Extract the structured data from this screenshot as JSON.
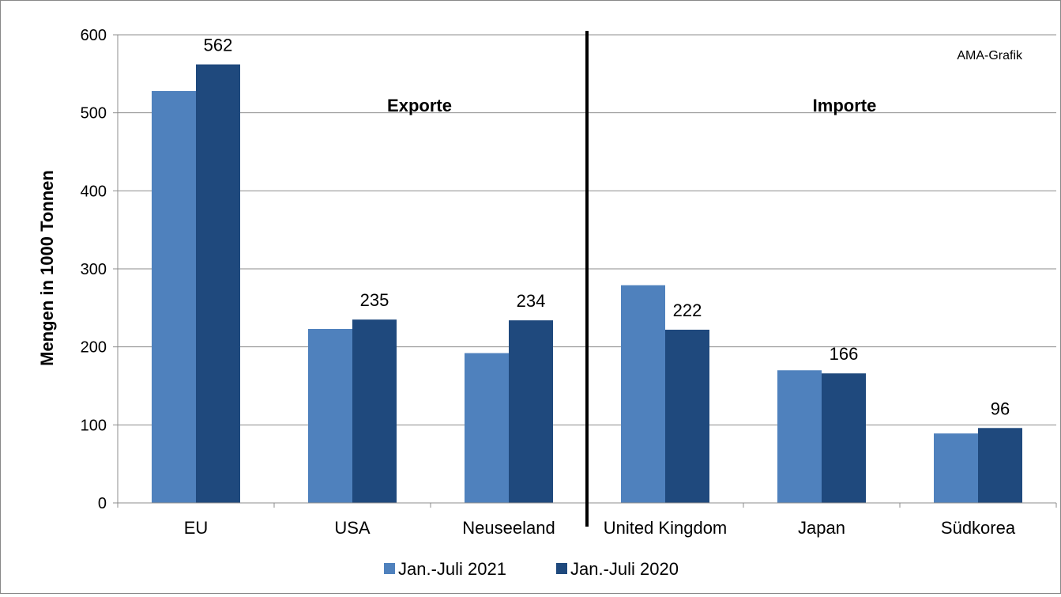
{
  "chart_data": {
    "type": "bar",
    "title": "",
    "xlabel": "",
    "ylabel": "Mengen in 1000 Tonnen",
    "ylim": [
      0,
      600
    ],
    "yticks": [
      0,
      100,
      200,
      300,
      400,
      500,
      600
    ],
    "grid": true,
    "categories": [
      "EU",
      "USA",
      "Neuseeland",
      "United Kingdom",
      "Japan",
      "Südkorea"
    ],
    "series": [
      {
        "name": "Jan.-Juli 2021",
        "values": [
          528,
          223,
          192,
          279,
          170,
          89
        ],
        "color": "#4f81bd",
        "labeled": false
      },
      {
        "name": "Jan.-Juli 2020",
        "values": [
          562,
          235,
          234,
          222,
          166,
          96
        ],
        "color": "#1f497d",
        "labeled": true
      }
    ],
    "data_labels": [
      "562",
      "235",
      "234",
      "222",
      "166",
      "96"
    ],
    "legend_position": "bottom",
    "divider_after_category": 3,
    "section_labels": {
      "left": "Exporte",
      "right": "Importe"
    },
    "credit": "AMA-Grafik"
  }
}
